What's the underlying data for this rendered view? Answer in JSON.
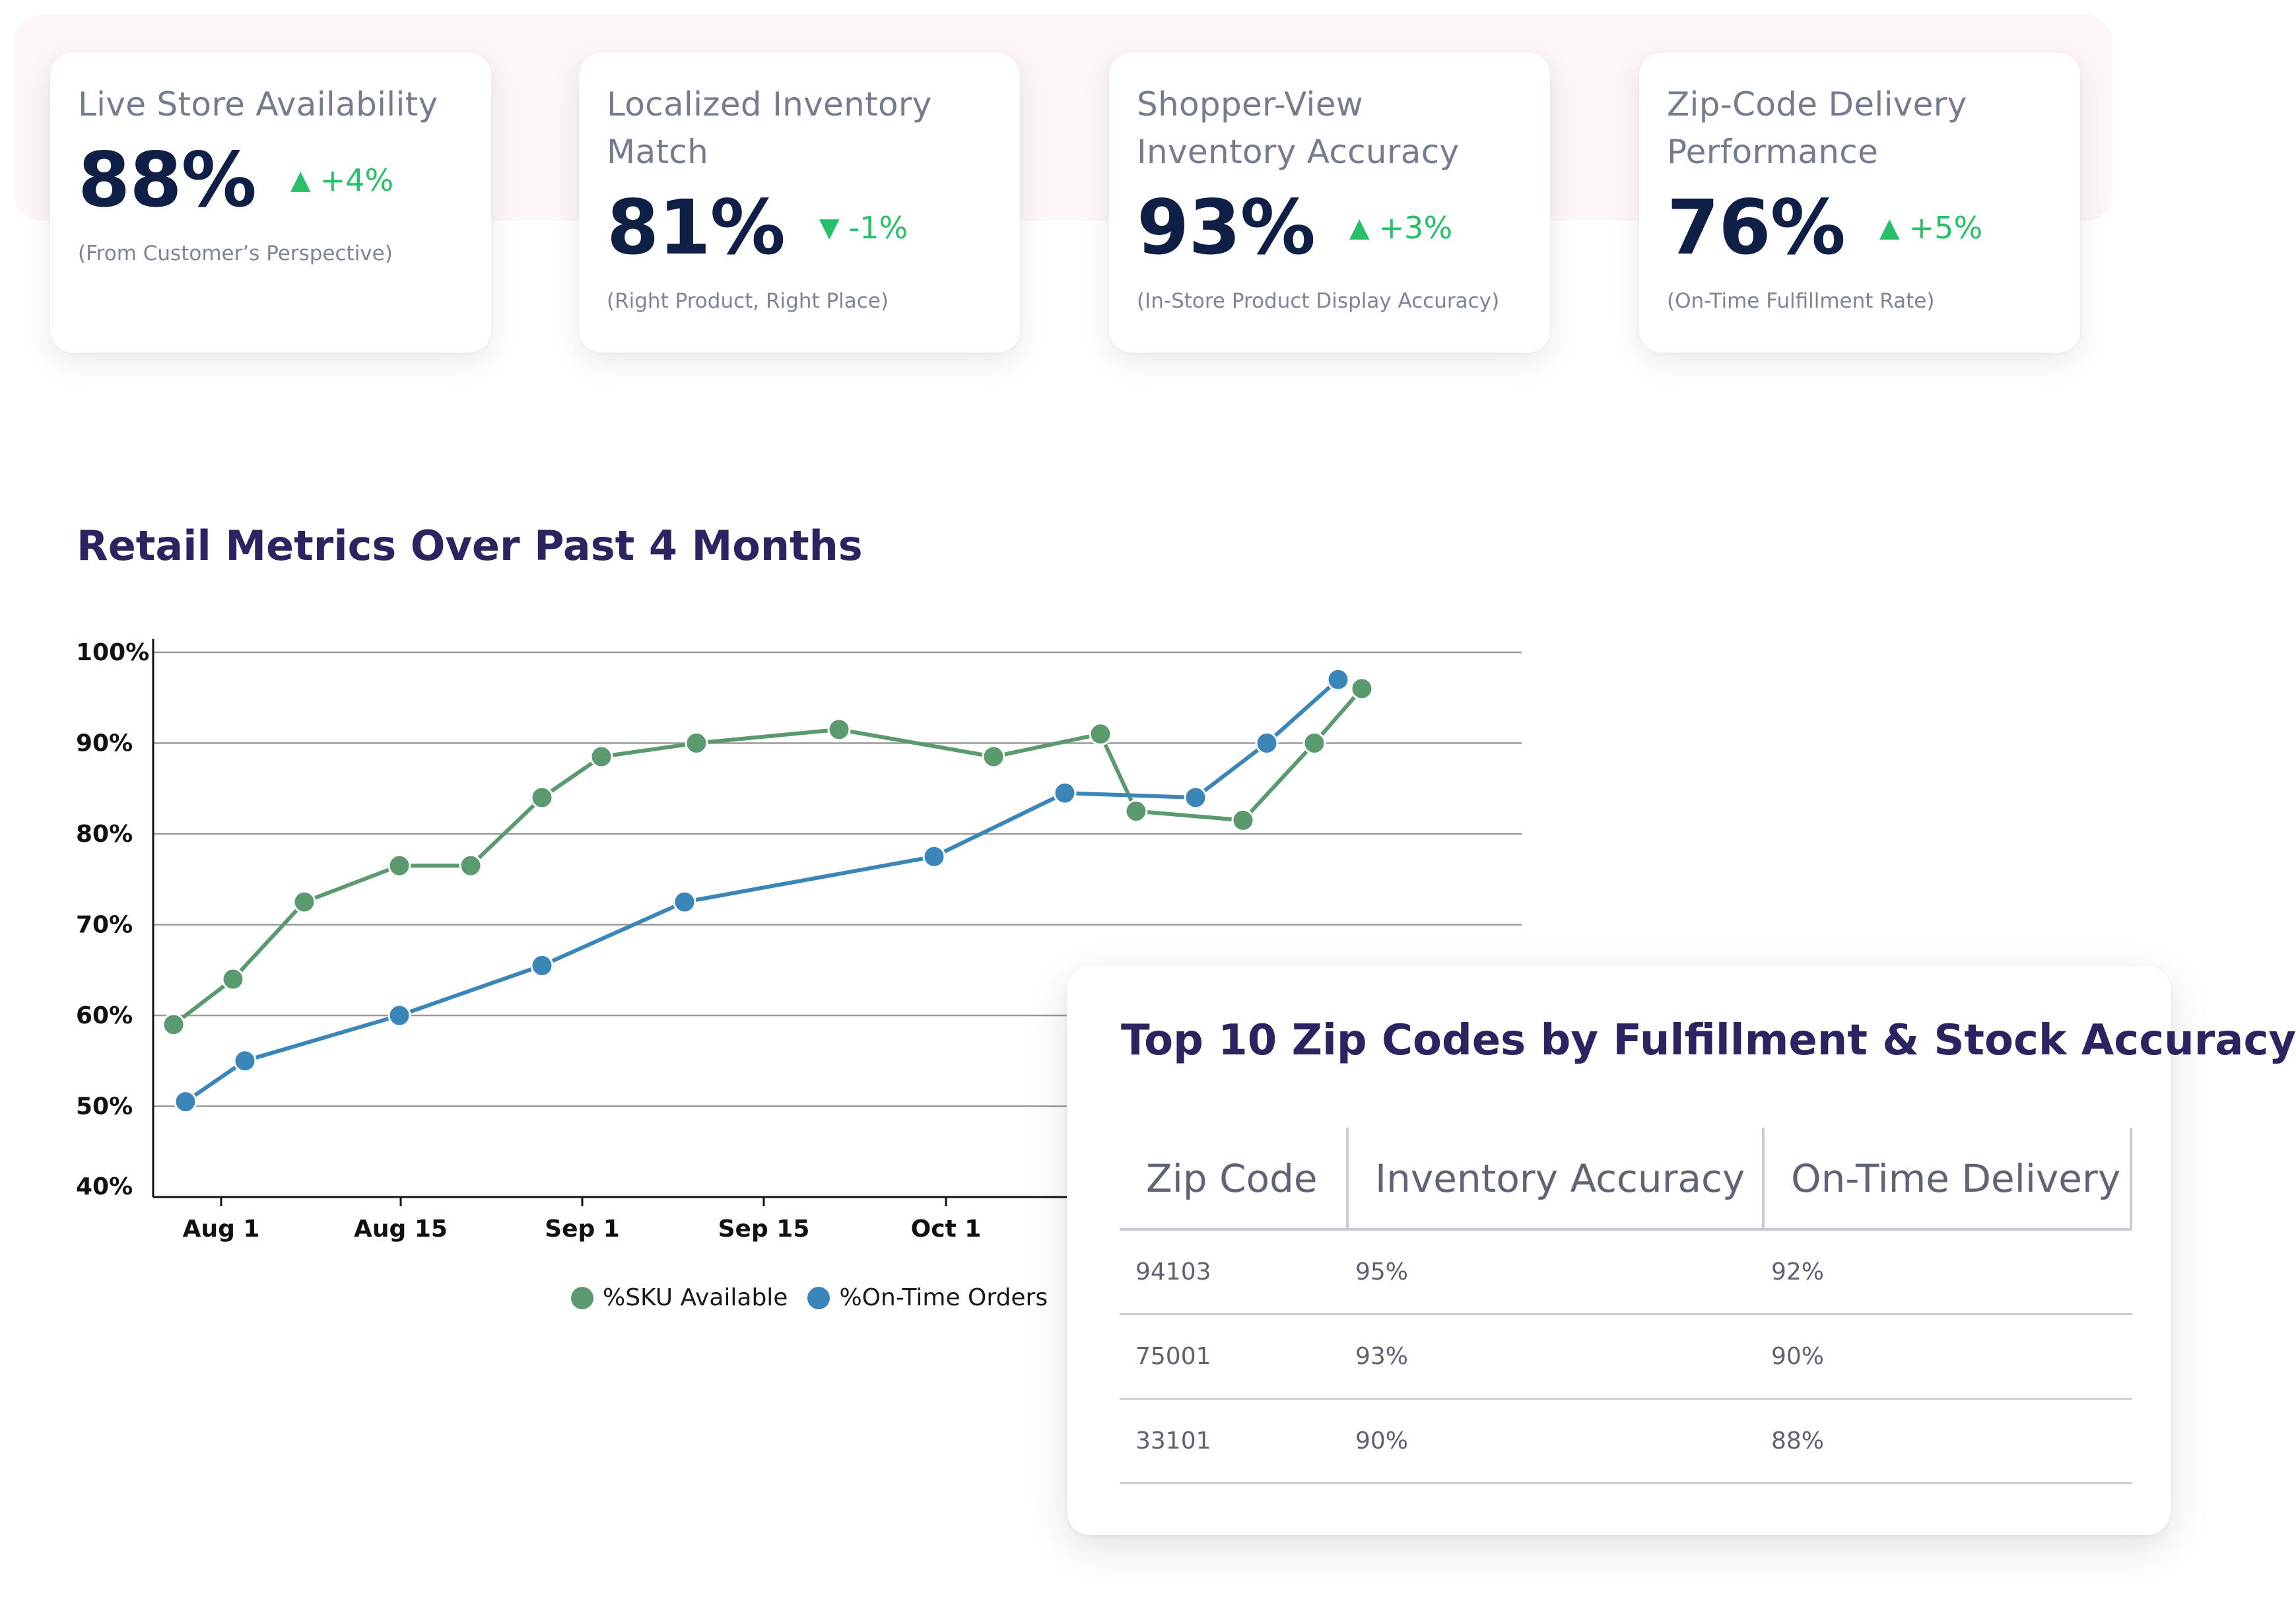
{
  "kpis": [
    {
      "title": "Live Store Availability",
      "value": "88%",
      "delta": "+4%",
      "direction": "up",
      "subtitle": "(From Customer’s Perspective)"
    },
    {
      "title": "Localized Inventory Match",
      "value": "81%",
      "delta": "-1%",
      "direction": "down",
      "subtitle": "(Right Product, Right Place)"
    },
    {
      "title": "Shopper-View Inventory Accuracy",
      "value": "93%",
      "delta": "+3%",
      "direction": "up",
      "subtitle": "(In-Store Product Display Accuracy)"
    },
    {
      "title": "Zip-Code Delivery Performance",
      "value": "76%",
      "delta": "+5%",
      "direction": "up",
      "subtitle": "(On-Time Fulfillment Rate)"
    }
  ],
  "chart": {
    "title": "Retail Metrics Over Past 4 Months"
  },
  "chart_data": {
    "type": "line",
    "title": "Retail Metrics Over Past 4 Months",
    "xlabel": "",
    "ylabel": "",
    "x_ticks": [
      "Aug 1",
      "Aug 15",
      "Sep 1",
      "Sep 15",
      "Oct 1"
    ],
    "y_ticks": [
      "40%",
      "50%",
      "60%",
      "70%",
      "80%",
      "90%",
      "100%"
    ],
    "ylim": [
      40,
      100
    ],
    "grid": true,
    "legend_position": "bottom",
    "series": [
      {
        "name": "%SKU Available",
        "color": "#5a9a6e",
        "points": [
          [
            "2023-07-28",
            59
          ],
          [
            "2023-08-02",
            64
          ],
          [
            "2023-08-08",
            72.5
          ],
          [
            "2023-08-16",
            76.5
          ],
          [
            "2023-08-22",
            76.5
          ],
          [
            "2023-08-28",
            84
          ],
          [
            "2023-09-02",
            88.5
          ],
          [
            "2023-09-10",
            90
          ],
          [
            "2023-09-22",
            91.5
          ],
          [
            "2023-10-05",
            88.5
          ],
          [
            "2023-10-14",
            91
          ],
          [
            "2023-10-17",
            82.5
          ],
          [
            "2023-10-26",
            81.5
          ],
          [
            "2023-11-01",
            90
          ],
          [
            "2023-11-05",
            96
          ]
        ]
      },
      {
        "name": "%On-Time Orders",
        "color": "#3a86b8",
        "points": [
          [
            "2023-07-29",
            50.5
          ],
          [
            "2023-08-03",
            55
          ],
          [
            "2023-08-16",
            60
          ],
          [
            "2023-08-28",
            65.5
          ],
          [
            "2023-09-09",
            72.5
          ],
          [
            "2023-09-30",
            77.5
          ],
          [
            "2023-10-11",
            84.5
          ],
          [
            "2023-10-22",
            84
          ],
          [
            "2023-10-28",
            90
          ],
          [
            "2023-11-03",
            97
          ]
        ]
      }
    ]
  },
  "table": {
    "title": "Top 10 Zip Codes by Fulfillment & Stock Accuracy",
    "columns": [
      "Zip Code",
      "Inventory Accuracy",
      "On-Time Delivery"
    ],
    "rows": [
      [
        "94103",
        "95%",
        "92%"
      ],
      [
        "75001",
        "93%",
        "90%"
      ],
      [
        "33101",
        "90%",
        "88%"
      ]
    ]
  },
  "colors": {
    "up": "#27c06a",
    "down": "#27c06a",
    "title": "#2a2460",
    "value": "#0f1f45"
  }
}
